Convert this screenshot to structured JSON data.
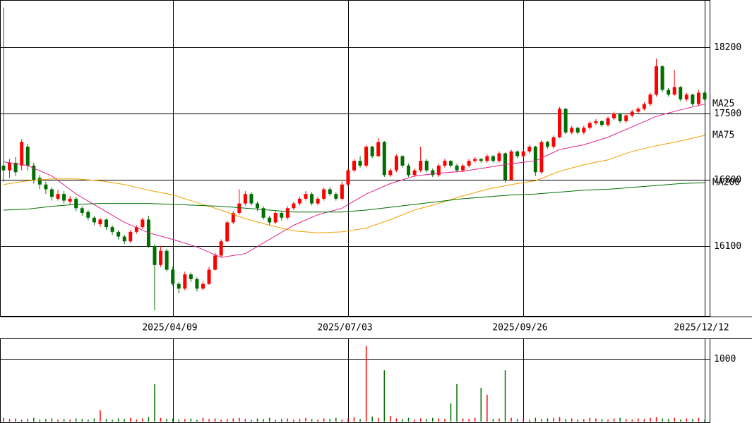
{
  "chart_data": [
    {
      "type": "candlestick",
      "up_color": "#ff0000",
      "down_color": "#006e00",
      "xlim": [
        0,
        116
      ],
      "xticks": [
        {
          "value": 28,
          "label": "2025/04/09"
        },
        {
          "value": 57,
          "label": "2025/07/03"
        },
        {
          "value": 86,
          "label": "2025/09/26"
        },
        {
          "value": 116,
          "label": "2025/12/12"
        }
      ],
      "ylim": [
        15355,
        18700
      ],
      "yticks": [
        16100,
        16800,
        17500,
        18200
      ],
      "grid": true,
      "candles": [
        [
          16950,
          18620,
          16780,
          16900
        ],
        [
          16900,
          17020,
          16820,
          16980
        ],
        [
          16980,
          17040,
          16840,
          16880
        ],
        [
          16950,
          17230,
          16900,
          17200
        ],
        [
          17150,
          17180,
          16900,
          16950
        ],
        [
          16950,
          16980,
          16760,
          16800
        ],
        [
          16820,
          16850,
          16700,
          16750
        ],
        [
          16750,
          16780,
          16650,
          16700
        ],
        [
          16700,
          16720,
          16580,
          16620
        ],
        [
          16600,
          16690,
          16580,
          16650
        ],
        [
          16650,
          16680,
          16550,
          16580
        ],
        [
          16570,
          16630,
          16540,
          16600
        ],
        [
          16600,
          16620,
          16470,
          16500
        ],
        [
          16500,
          16520,
          16420,
          16450
        ],
        [
          16460,
          16480,
          16370,
          16400
        ],
        [
          16400,
          16420,
          16320,
          16350
        ],
        [
          16330,
          16400,
          16300,
          16380
        ],
        [
          16380,
          16390,
          16270,
          16300
        ],
        [
          16300,
          16320,
          16220,
          16250
        ],
        [
          16250,
          16270,
          16170,
          16200
        ],
        [
          16200,
          16220,
          16120,
          16150
        ],
        [
          16150,
          16270,
          16130,
          16250
        ],
        [
          16250,
          16320,
          16230,
          16300
        ],
        [
          16300,
          16400,
          16280,
          16380
        ],
        [
          16380,
          16420,
          16080,
          16100
        ],
        [
          16100,
          16120,
          15420,
          15900
        ],
        [
          15900,
          16100,
          15880,
          16050
        ],
        [
          16050,
          16070,
          15830,
          15850
        ],
        [
          15850,
          15880,
          15680,
          15700
        ],
        [
          15700,
          15720,
          15600,
          15650
        ],
        [
          15650,
          15830,
          15630,
          15800
        ],
        [
          15800,
          15820,
          15720,
          15750
        ],
        [
          15750,
          15770,
          15620,
          15650
        ],
        [
          15650,
          15730,
          15630,
          15700
        ],
        [
          15700,
          15880,
          15690,
          15850
        ],
        [
          15850,
          16030,
          15840,
          16000
        ],
        [
          16000,
          16170,
          15980,
          16150
        ],
        [
          16150,
          16370,
          16140,
          16350
        ],
        [
          16350,
          16470,
          16330,
          16450
        ],
        [
          16450,
          16700,
          16430,
          16550
        ],
        [
          16550,
          16680,
          16530,
          16650
        ],
        [
          16650,
          16670,
          16530,
          16550
        ],
        [
          16550,
          16570,
          16470,
          16500
        ],
        [
          16500,
          16520,
          16380,
          16400
        ],
        [
          16400,
          16420,
          16320,
          16350
        ],
        [
          16350,
          16470,
          16330,
          16450
        ],
        [
          16450,
          16470,
          16370,
          16400
        ],
        [
          16400,
          16520,
          16380,
          16500
        ],
        [
          16500,
          16570,
          16480,
          16550
        ],
        [
          16550,
          16620,
          16530,
          16600
        ],
        [
          16600,
          16680,
          16580,
          16650
        ],
        [
          16650,
          16670,
          16530,
          16550
        ],
        [
          16550,
          16620,
          16530,
          16600
        ],
        [
          16600,
          16720,
          16580,
          16700
        ],
        [
          16700,
          16720,
          16630,
          16650
        ],
        [
          16650,
          16670,
          16580,
          16600
        ],
        [
          16600,
          16780,
          16580,
          16750
        ],
        [
          16750,
          16920,
          16730,
          16900
        ],
        [
          16900,
          17020,
          16880,
          17000
        ],
        [
          17000,
          17050,
          16930,
          16950
        ],
        [
          16950,
          17170,
          16930,
          17150
        ],
        [
          17150,
          17160,
          17030,
          17050
        ],
        [
          17050,
          17240,
          17040,
          17200
        ],
        [
          17200,
          17210,
          16830,
          16850
        ],
        [
          16850,
          16920,
          16830,
          16900
        ],
        [
          16900,
          17070,
          16880,
          17050
        ],
        [
          17050,
          17060,
          16930,
          16950
        ],
        [
          16950,
          16970,
          16830,
          16850
        ],
        [
          16850,
          16920,
          16830,
          16900
        ],
        [
          16900,
          17150,
          16880,
          17000
        ],
        [
          17000,
          17020,
          16880,
          16900
        ],
        [
          16900,
          16920,
          16830,
          16850
        ],
        [
          16850,
          16970,
          16830,
          16950
        ],
        [
          16950,
          17020,
          16930,
          17000
        ],
        [
          17000,
          17010,
          16930,
          16950
        ],
        [
          16950,
          16970,
          16880,
          16900
        ],
        [
          16900,
          16970,
          16880,
          16950
        ],
        [
          16950,
          17020,
          16930,
          17000
        ],
        [
          17000,
          17040,
          16980,
          17020
        ],
        [
          17020,
          17030,
          16980,
          17000
        ],
        [
          17000,
          17070,
          16980,
          17050
        ],
        [
          17050,
          17060,
          16980,
          17000
        ],
        [
          17000,
          17100,
          16980,
          17080
        ],
        [
          17080,
          17090,
          16770,
          16800
        ],
        [
          16800,
          17120,
          16790,
          17100
        ],
        [
          17100,
          17110,
          17030,
          17050
        ],
        [
          17050,
          17120,
          17030,
          17100
        ],
        [
          17100,
          17170,
          17080,
          17150
        ],
        [
          17150,
          17160,
          16840,
          16880
        ],
        [
          16880,
          17220,
          16860,
          17200
        ],
        [
          17200,
          17210,
          17130,
          17150
        ],
        [
          17150,
          17270,
          17130,
          17250
        ],
        [
          17250,
          17570,
          17240,
          17550
        ],
        [
          17550,
          17560,
          17280,
          17300
        ],
        [
          17300,
          17370,
          17280,
          17350
        ],
        [
          17350,
          17360,
          17280,
          17300
        ],
        [
          17300,
          17370,
          17280,
          17350
        ],
        [
          17350,
          17420,
          17330,
          17400
        ],
        [
          17400,
          17440,
          17380,
          17420
        ],
        [
          17420,
          17430,
          17360,
          17380
        ],
        [
          17380,
          17470,
          17360,
          17450
        ],
        [
          17450,
          17520,
          17430,
          17500
        ],
        [
          17500,
          17510,
          17400,
          17420
        ],
        [
          17420,
          17500,
          17400,
          17480
        ],
        [
          17480,
          17540,
          17460,
          17520
        ],
        [
          17520,
          17570,
          17500,
          17550
        ],
        [
          17550,
          17620,
          17530,
          17600
        ],
        [
          17600,
          17720,
          17580,
          17700
        ],
        [
          17700,
          18080,
          17680,
          18000
        ],
        [
          18000,
          18010,
          17730,
          17750
        ],
        [
          17750,
          17770,
          17680,
          17700
        ],
        [
          17700,
          17960,
          17690,
          17780
        ],
        [
          17780,
          17790,
          17630,
          17650
        ],
        [
          17650,
          17720,
          17630,
          17700
        ],
        [
          17700,
          17710,
          17580,
          17600
        ],
        [
          17600,
          17750,
          17580,
          17720
        ],
        [
          17720,
          17740,
          17630,
          17650
        ]
      ],
      "series": [
        {
          "name": "MA25",
          "color": "#e0208c",
          "x": [
            0,
            4,
            8,
            12,
            16,
            20,
            24,
            28,
            32,
            36,
            40,
            44,
            48,
            52,
            56,
            60,
            64,
            68,
            72,
            76,
            80,
            84,
            88,
            92,
            96,
            100,
            104,
            108,
            112,
            116
          ],
          "values": [
            16990,
            16950,
            16840,
            16650,
            16500,
            16350,
            16240,
            16170,
            16090,
            15980,
            16020,
            16170,
            16320,
            16430,
            16500,
            16650,
            16760,
            16840,
            16870,
            16890,
            16930,
            16970,
            17000,
            17120,
            17170,
            17250,
            17360,
            17470,
            17540,
            17600
          ]
        },
        {
          "name": "MA75",
          "color": "#f0a000",
          "x": [
            0,
            4,
            8,
            12,
            16,
            20,
            24,
            28,
            32,
            36,
            40,
            44,
            48,
            52,
            56,
            60,
            64,
            68,
            72,
            76,
            80,
            84,
            88,
            92,
            96,
            100,
            104,
            108,
            112,
            116
          ],
          "values": [
            16750,
            16790,
            16810,
            16810,
            16790,
            16750,
            16690,
            16640,
            16560,
            16480,
            16390,
            16320,
            16260,
            16240,
            16250,
            16290,
            16380,
            16480,
            16550,
            16630,
            16700,
            16750,
            16790,
            16890,
            16960,
            17010,
            17100,
            17160,
            17210,
            17270
          ]
        },
        {
          "name": "MA200",
          "color": "#006e00",
          "x": [
            0,
            4,
            8,
            12,
            16,
            20,
            24,
            28,
            32,
            36,
            40,
            44,
            48,
            52,
            56,
            60,
            64,
            68,
            72,
            76,
            80,
            84,
            88,
            92,
            96,
            100,
            104,
            108,
            112,
            116
          ],
          "values": [
            16480,
            16490,
            16520,
            16540,
            16550,
            16550,
            16550,
            16540,
            16530,
            16520,
            16500,
            16480,
            16460,
            16460,
            16460,
            16480,
            16510,
            16540,
            16570,
            16600,
            16620,
            16640,
            16650,
            16670,
            16690,
            16700,
            16720,
            16740,
            16760,
            16770
          ]
        }
      ]
    },
    {
      "type": "bar",
      "ylim": [
        0,
        1330
      ],
      "yticks": [
        1000
      ],
      "values": [
        60,
        40,
        50,
        30,
        40,
        60,
        30,
        40,
        50,
        30,
        40,
        30,
        50,
        40,
        30,
        50,
        180,
        40,
        30,
        50,
        40,
        60,
        30,
        50,
        70,
        600,
        60,
        40,
        50,
        30,
        40,
        50,
        30,
        60,
        40,
        50,
        30,
        40,
        50,
        60,
        40,
        30,
        50,
        40,
        60,
        30,
        40,
        50,
        30,
        40,
        60,
        40,
        30,
        50,
        40,
        60,
        30,
        50,
        70,
        40,
        1210,
        80,
        60,
        820,
        90,
        50,
        40,
        60,
        30,
        50,
        40,
        60,
        50,
        40,
        290,
        600,
        50,
        40,
        60,
        540,
        430,
        40,
        50,
        820,
        60,
        40,
        50,
        30,
        60,
        40,
        50,
        60,
        70,
        40,
        50,
        30,
        40,
        60,
        50,
        40,
        30,
        50,
        60,
        40,
        30,
        50,
        40,
        60,
        70,
        50,
        40,
        60,
        30,
        50,
        40,
        60,
        30
      ]
    }
  ]
}
